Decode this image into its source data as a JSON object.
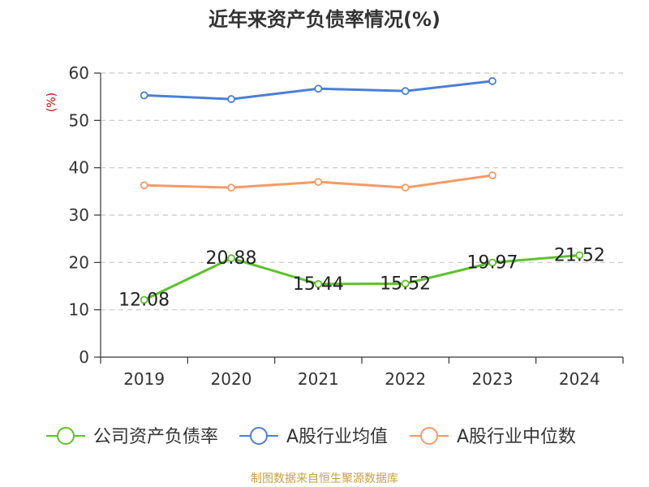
{
  "chart_data": {
    "type": "line",
    "title": "近年来资产负债率情况(%)",
    "ylabel": "(%)",
    "categories": [
      "2019",
      "2020",
      "2021",
      "2022",
      "2023",
      "2024"
    ],
    "ylim": [
      0,
      60
    ],
    "yticks": [
      0,
      10,
      20,
      30,
      40,
      50,
      60
    ],
    "grid": true,
    "legend_position": "bottom",
    "series": [
      {
        "name": "公司资产负债率",
        "color": "#5cc22a",
        "values": [
          12.08,
          20.88,
          15.44,
          15.52,
          19.97,
          21.52
        ],
        "labels": [
          "12.08",
          "20.88",
          "15.44",
          "15.52",
          "19.97",
          "21.52"
        ]
      },
      {
        "name": "A股行业均值",
        "color": "#4a7fd8",
        "values": [
          55.3,
          54.5,
          56.7,
          56.2,
          58.3,
          null
        ]
      },
      {
        "name": "A股行业中位数",
        "color": "#f79a66",
        "values": [
          36.3,
          35.8,
          37.0,
          35.8,
          38.4,
          null
        ]
      }
    ],
    "source": "制图数据来自恒生聚源数据库"
  }
}
